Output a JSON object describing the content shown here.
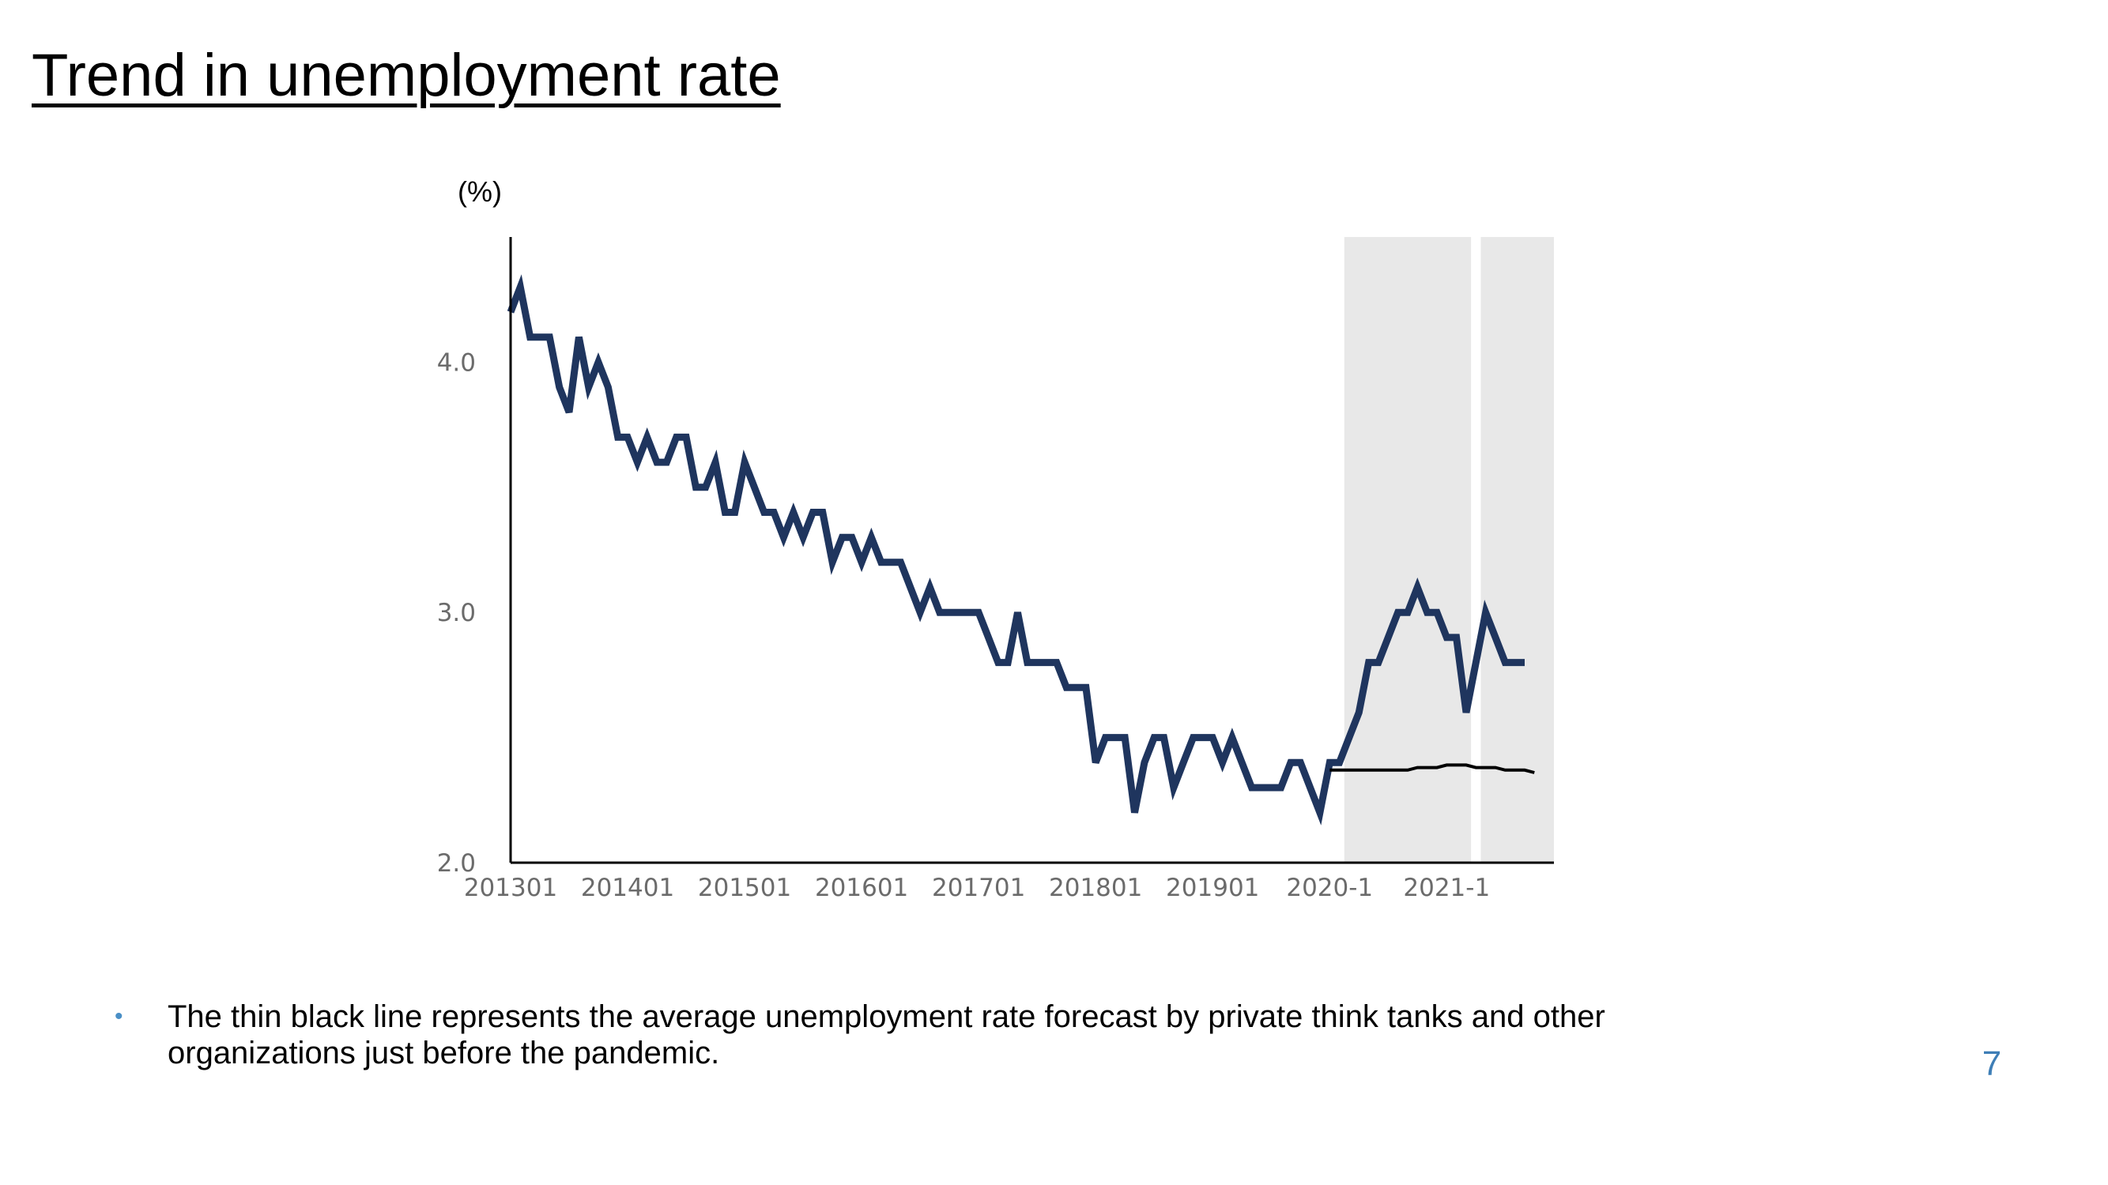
{
  "slide": {
    "title": "Trend in unemployment rate",
    "page_number": "7",
    "note_bullet": "•",
    "note": "The thin black line represents the average unemployment rate forecast by private think tanks and other organizations just before the pandemic."
  },
  "colors": {
    "actual_line": "#1f355e",
    "forecast_line": "#000000",
    "shade": "#e8e8e8",
    "axis": "#000000",
    "tick_text": "#6b6b6b",
    "page_number": "#3e7eb6",
    "bullet": "#4a8fc6"
  },
  "chart_data": {
    "type": "line",
    "title": "",
    "ylabel": "(%)",
    "xlabel": "",
    "ylim": [
      2.0,
      4.5
    ],
    "xlim": [
      0,
      107
    ],
    "yticks": [
      {
        "value": 2.0,
        "label": "2.0"
      },
      {
        "value": 3.0,
        "label": "3.0"
      },
      {
        "value": 4.0,
        "label": "4.0"
      }
    ],
    "xticks": [
      {
        "x": 0,
        "label": "201301"
      },
      {
        "x": 12,
        "label": "201401"
      },
      {
        "x": 24,
        "label": "201501"
      },
      {
        "x": 36,
        "label": "201601"
      },
      {
        "x": 48,
        "label": "201701"
      },
      {
        "x": 60,
        "label": "201801"
      },
      {
        "x": 72,
        "label": "201901"
      },
      {
        "x": 84,
        "label": "2020-1"
      },
      {
        "x": 96,
        "label": "2021-1"
      }
    ],
    "shaded_ranges": [
      [
        85.5,
        98.5
      ],
      [
        99.5,
        107
      ]
    ],
    "grid": false,
    "legend": "none",
    "series": [
      {
        "style": "thick",
        "x": [
          0,
          1,
          2,
          3,
          4,
          5,
          6,
          7,
          8,
          9,
          10,
          11,
          12,
          13,
          14,
          15,
          16,
          17,
          18,
          19,
          20,
          21,
          22,
          23,
          24,
          25,
          26,
          27,
          28,
          29,
          30,
          31,
          32,
          33,
          34,
          35,
          36,
          37,
          38,
          39,
          40,
          41,
          42,
          43,
          44,
          45,
          46,
          47,
          48,
          49,
          50,
          51,
          52,
          53,
          54,
          55,
          56,
          57,
          58,
          59,
          60,
          61,
          62,
          63,
          64,
          65,
          66,
          67,
          68,
          69,
          70,
          71,
          72,
          73,
          74,
          75,
          76,
          77,
          78,
          79,
          80,
          81,
          82,
          83,
          84,
          85,
          86,
          87,
          88,
          89,
          90,
          91,
          92,
          93,
          94,
          95,
          96,
          97,
          98,
          99,
          100,
          101,
          102,
          103,
          104
        ],
        "values": [
          4.2,
          4.3,
          4.1,
          4.1,
          4.1,
          3.9,
          3.8,
          4.1,
          3.9,
          4.0,
          3.9,
          3.7,
          3.7,
          3.6,
          3.7,
          3.6,
          3.6,
          3.7,
          3.7,
          3.5,
          3.5,
          3.6,
          3.4,
          3.4,
          3.6,
          3.5,
          3.4,
          3.4,
          3.3,
          3.4,
          3.3,
          3.4,
          3.4,
          3.2,
          3.3,
          3.3,
          3.2,
          3.3,
          3.2,
          3.2,
          3.2,
          3.1,
          3.0,
          3.1,
          3.0,
          3.0,
          3.0,
          3.0,
          3.0,
          2.9,
          2.8,
          2.8,
          3.0,
          2.8,
          2.8,
          2.8,
          2.8,
          2.7,
          2.7,
          2.7,
          2.4,
          2.5,
          2.5,
          2.5,
          2.2,
          2.4,
          2.5,
          2.5,
          2.3,
          2.4,
          2.5,
          2.5,
          2.5,
          2.4,
          2.5,
          2.4,
          2.3,
          2.3,
          2.3,
          2.3,
          2.4,
          2.4,
          2.3,
          2.2,
          2.4,
          2.4,
          2.5,
          2.6,
          2.8,
          2.8,
          2.9,
          3.0,
          3.0,
          3.1,
          3.0,
          3.0,
          2.9,
          2.9,
          2.6,
          2.8,
          3.0,
          2.9,
          2.8,
          2.8,
          2.8
        ]
      },
      {
        "style": "thin",
        "x": [
          84,
          88,
          92,
          93,
          94,
          95,
          96,
          97,
          98,
          99,
          100,
          101,
          102,
          103,
          104,
          105
        ],
        "values": [
          2.37,
          2.37,
          2.37,
          2.38,
          2.38,
          2.38,
          2.39,
          2.39,
          2.39,
          2.38,
          2.38,
          2.38,
          2.37,
          2.37,
          2.37,
          2.36
        ]
      }
    ]
  }
}
